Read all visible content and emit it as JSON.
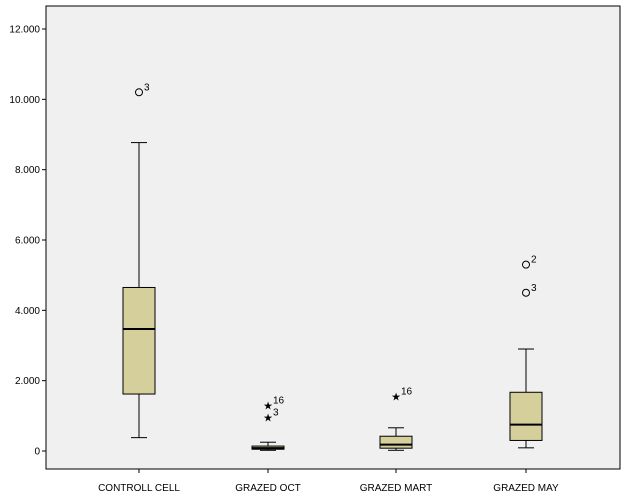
{
  "chart_data": {
    "type": "boxplot",
    "categories": [
      "CONTROLL CELL",
      "GRAZED OCT",
      "GRAZED MART",
      "GRAZED MAY"
    ],
    "ylim": [
      -0.1,
      12.4
    ],
    "yticks": [
      "0",
      "2.000",
      "4.000",
      "6.000",
      "8.000",
      "10.000",
      "12.000"
    ],
    "yticks_values": [
      0,
      2,
      4,
      6,
      8,
      10,
      12
    ],
    "boxes": [
      {
        "category": "CONTROLL CELL",
        "whisker_low": 0.38,
        "q1": 1.62,
        "median": 3.47,
        "q3": 4.65,
        "whisker_high": 8.77,
        "outliers": [
          {
            "value": 10.2,
            "marker": "circle",
            "label": "3"
          }
        ]
      },
      {
        "category": "GRAZED OCT",
        "whisker_low": 0.02,
        "q1": 0.05,
        "median": 0.08,
        "q3": 0.14,
        "whisker_high": 0.25,
        "outliers": [
          {
            "value": 1.3,
            "marker": "star",
            "label": "16"
          },
          {
            "value": 0.95,
            "marker": "star",
            "label": "3"
          }
        ]
      },
      {
        "category": "GRAZED MART",
        "whisker_low": 0.02,
        "q1": 0.08,
        "median": 0.18,
        "q3": 0.42,
        "whisker_high": 0.66,
        "outliers": [
          {
            "value": 1.55,
            "marker": "star",
            "label": "16"
          }
        ]
      },
      {
        "category": "GRAZED MAY",
        "whisker_low": 0.09,
        "q1": 0.3,
        "median": 0.75,
        "q3": 1.67,
        "whisker_high": 2.9,
        "outliers": [
          {
            "value": 5.3,
            "marker": "circle",
            "label": "2"
          },
          {
            "value": 4.5,
            "marker": "circle",
            "label": "3"
          }
        ]
      }
    ],
    "box_color": "#d4cf9b",
    "plot_background": "#f0f0f0",
    "grid": false,
    "title": "",
    "xlabel": "",
    "ylabel": ""
  }
}
